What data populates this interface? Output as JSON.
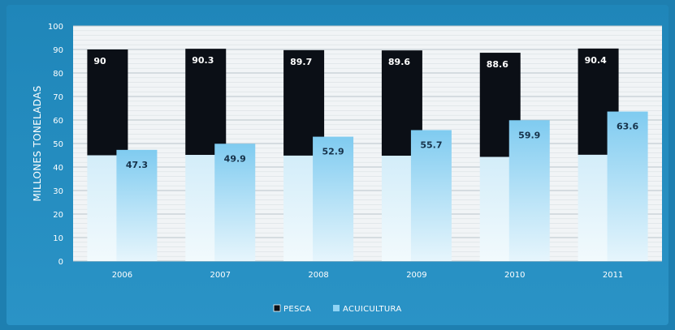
{
  "chart_data": {
    "type": "bar",
    "title": "",
    "xlabel": "",
    "ylabel": "MILLONES TONELADAS",
    "ylim": [
      0,
      100
    ],
    "yticks": [
      0,
      10,
      20,
      30,
      40,
      50,
      60,
      70,
      80,
      90,
      100
    ],
    "categories": [
      "2006",
      "2007",
      "2008",
      "2009",
      "2010",
      "2011"
    ],
    "series": [
      {
        "name": "PESCA",
        "values": [
          90,
          90.3,
          89.7,
          89.6,
          88.6,
          90.4
        ],
        "color": "#0b0f16",
        "labels": [
          "90",
          "90.3",
          "89.7",
          "89.6",
          "88.6",
          "90.4"
        ]
      },
      {
        "name": "ACUICULTURA",
        "values": [
          47.3,
          49.9,
          52.9,
          55.7,
          59.9,
          63.6
        ],
        "color": "#8fd3f4",
        "labels": [
          "47.3",
          "49.9",
          "52.9",
          "55.7",
          "59.9",
          "63.6"
        ]
      }
    ],
    "grid": true,
    "legend": "bottom-center"
  }
}
